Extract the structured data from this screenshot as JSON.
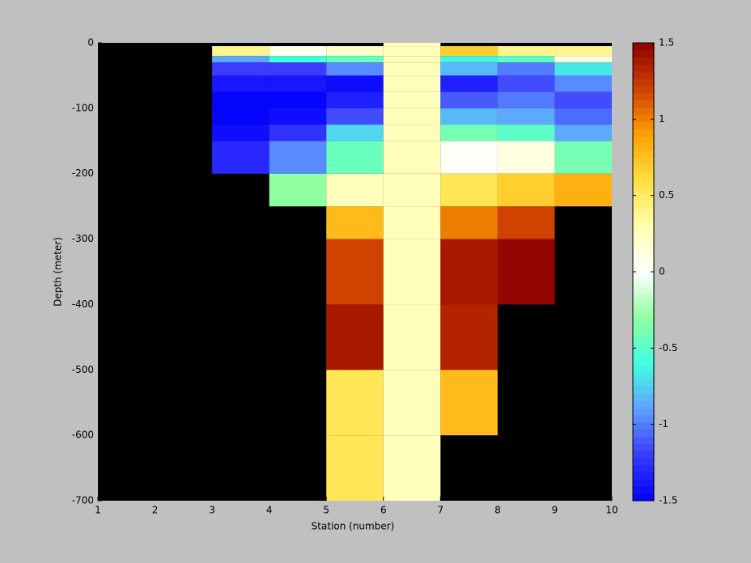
{
  "chart_data": {
    "type": "heatmap",
    "xlabel": "Station (number)",
    "ylabel": "Depth (meter)",
    "x": [
      1,
      2,
      3,
      4,
      5,
      6,
      7,
      8,
      9,
      10
    ],
    "y": [
      0,
      -5,
      -20,
      -30,
      -50,
      -75,
      -100,
      -125,
      -150,
      -200,
      -250,
      -300,
      -400,
      -500,
      -600,
      -700
    ],
    "z": [
      [
        null,
        null,
        null,
        null,
        null,
        0.25,
        null,
        null,
        null
      ],
      [
        null,
        null,
        0.4,
        0.05,
        0.2,
        0.25,
        0.7,
        0.4,
        0.4
      ],
      [
        null,
        null,
        -0.85,
        -0.6,
        -0.45,
        0.25,
        -0.65,
        -0.5,
        0.1
      ],
      [
        null,
        null,
        -1.2,
        -1.2,
        -0.95,
        0.25,
        -0.8,
        -1.0,
        -0.7
      ],
      [
        null,
        null,
        -1.4,
        -1.4,
        -1.45,
        0.25,
        -1.35,
        -1.15,
        -0.95
      ],
      [
        null,
        null,
        -1.5,
        -1.5,
        -1.35,
        0.25,
        -1.1,
        -1.0,
        -1.15
      ],
      [
        null,
        null,
        -1.5,
        -1.45,
        -1.15,
        0.25,
        -0.8,
        -0.85,
        -1.05
      ],
      [
        null,
        null,
        -1.45,
        -1.25,
        -0.75,
        0.25,
        -0.4,
        -0.5,
        -0.85
      ],
      [
        null,
        null,
        -1.3,
        -0.95,
        -0.45,
        0.25,
        0.0,
        0.1,
        -0.4
      ],
      [
        null,
        null,
        null,
        -0.3,
        0.25,
        0.25,
        0.55,
        0.7,
        0.8
      ],
      [
        null,
        null,
        null,
        null,
        0.75,
        0.25,
        1.0,
        1.2,
        null
      ],
      [
        null,
        null,
        null,
        null,
        1.2,
        0.25,
        1.4,
        1.5,
        null
      ],
      [
        null,
        null,
        null,
        null,
        1.4,
        0.25,
        1.35,
        null,
        null
      ],
      [
        null,
        null,
        null,
        null,
        0.55,
        0.25,
        0.75,
        null,
        null
      ],
      [
        null,
        null,
        null,
        null,
        0.55,
        0.25,
        null,
        null,
        null
      ]
    ],
    "xlim": [
      1,
      10
    ],
    "ylim": [
      -700,
      0
    ],
    "xticks": [
      1,
      2,
      3,
      4,
      5,
      6,
      7,
      8,
      9,
      10
    ],
    "yticks": [
      0,
      -100,
      -200,
      -300,
      -400,
      -500,
      -600,
      -700
    ],
    "clim": [
      -1.5,
      1.5
    ],
    "colorbar_ticks": [
      -1.5,
      -1,
      -0.5,
      0,
      0.5,
      1,
      1.5
    ],
    "colormap": [
      "#0000ff",
      "#3a3aff",
      "#60a0ff",
      "#40ffe0",
      "#90ffa0",
      "#ffffff",
      "#ffffb0",
      "#ffe040",
      "#ffa000",
      "#d04000",
      "#900000"
    ],
    "levels": 64,
    "nan_color": "#000000"
  }
}
